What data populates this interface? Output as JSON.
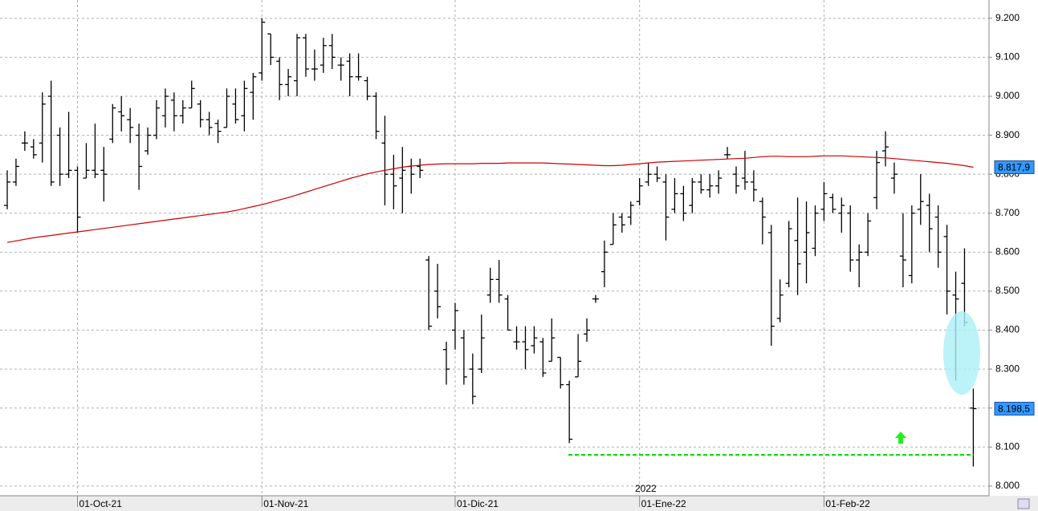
{
  "chart_data": {
    "type": "ohlc",
    "categories": [
      null,
      null,
      null,
      null,
      null,
      null,
      null,
      null,
      "01-Oct-21",
      null,
      null,
      null,
      null,
      null,
      null,
      null,
      null,
      null,
      null,
      null,
      null,
      null,
      null,
      null,
      null,
      null,
      null,
      null,
      null,
      "01-Nov-21",
      null,
      null,
      null,
      null,
      null,
      null,
      null,
      null,
      null,
      null,
      null,
      null,
      null,
      null,
      null,
      null,
      null,
      null,
      null,
      null,
      null,
      "01-Dic-21",
      null,
      null,
      null,
      null,
      null,
      null,
      null,
      null,
      null,
      null,
      null,
      null,
      null,
      null,
      null,
      null,
      null,
      null,
      null,
      null,
      "01-Ene-22",
      null,
      null,
      null,
      null,
      null,
      null,
      null,
      null,
      null,
      null,
      null,
      null,
      null,
      null,
      null,
      null,
      null,
      null,
      null,
      null,
      "01-Feb-22",
      null,
      null,
      null,
      null,
      null,
      null,
      null,
      null,
      null,
      null,
      null,
      null,
      null,
      null,
      null,
      null,
      null
    ],
    "year_label": "2022",
    "series": [
      {
        "color": "#000000",
        "last_label": "8.198,5",
        "open": [
          8.72,
          8.78,
          8.88,
          8.87,
          8.88,
          9.0,
          8.9,
          8.8,
          8.81,
          8.79,
          8.81,
          8.81,
          8.89,
          8.96,
          8.94,
          8.9,
          8.86,
          8.9,
          8.95,
          8.99,
          8.95,
          8.97,
          8.98,
          8.94,
          8.93,
          8.92,
          8.98,
          8.95,
          9.01,
          9.06,
          9.16,
          9.09,
          9.03,
          9.04,
          9.15,
          9.07,
          9.08,
          9.13,
          9.08,
          9.09,
          9.05,
          9.04,
          9.0,
          8.88,
          8.8,
          8.79,
          8.82,
          8.82,
          8.58,
          8.5,
          8.35,
          8.4,
          8.38,
          8.3,
          8.3,
          8.49,
          8.53,
          8.48,
          8.37,
          8.37,
          8.36,
          8.37,
          8.32,
          8.33,
          8.26,
          8.28,
          8.39,
          8.48,
          8.55,
          8.62,
          8.69,
          8.69,
          8.73,
          8.78,
          8.8,
          8.78,
          8.71,
          8.75,
          8.72,
          8.78,
          8.76,
          8.77,
          8.85,
          8.8,
          8.79,
          8.78,
          8.73,
          8.65,
          8.43,
          8.52,
          8.63,
          8.6,
          8.61,
          8.71,
          8.74,
          8.7,
          8.7,
          8.58,
          8.6,
          8.74,
          8.86,
          8.79,
          8.59,
          8.54,
          8.71,
          8.72,
          8.69,
          8.64,
          8.49,
          8.52,
          8.2
        ],
        "high": [
          8.81,
          8.84,
          8.91,
          8.89,
          9.01,
          9.04,
          8.92,
          8.96,
          8.82,
          8.88,
          8.93,
          8.87,
          8.98,
          9.0,
          8.97,
          8.93,
          8.92,
          8.99,
          9.02,
          9.01,
          8.99,
          9.04,
          8.99,
          8.96,
          8.94,
          9.02,
          9.02,
          9.04,
          9.06,
          9.2,
          9.16,
          9.1,
          9.07,
          9.16,
          9.16,
          9.12,
          9.15,
          9.16,
          9.1,
          9.11,
          9.11,
          9.05,
          9.01,
          8.95,
          8.85,
          8.87,
          8.84,
          8.84,
          8.59,
          8.57,
          8.37,
          8.47,
          8.4,
          8.34,
          8.44,
          8.56,
          8.58,
          8.49,
          8.41,
          8.41,
          8.41,
          8.38,
          8.43,
          8.33,
          8.27,
          8.39,
          8.43,
          8.49,
          8.63,
          8.7,
          8.7,
          8.73,
          8.79,
          8.83,
          8.82,
          8.8,
          8.79,
          8.77,
          8.79,
          8.8,
          8.8,
          8.81,
          8.87,
          8.82,
          8.86,
          8.81,
          8.74,
          8.67,
          8.53,
          8.68,
          8.74,
          8.73,
          8.72,
          8.78,
          8.75,
          8.74,
          8.72,
          8.62,
          8.7,
          8.86,
          8.91,
          8.83,
          8.7,
          8.72,
          8.8,
          8.75,
          8.72,
          8.67,
          8.55,
          8.61,
          8.25
        ],
        "low": [
          8.71,
          8.77,
          8.86,
          8.84,
          8.83,
          8.77,
          8.77,
          8.79,
          8.65,
          8.79,
          8.79,
          8.73,
          8.88,
          8.91,
          8.88,
          8.76,
          8.85,
          8.89,
          8.92,
          8.91,
          8.93,
          8.97,
          8.92,
          8.9,
          8.88,
          8.92,
          8.93,
          8.91,
          8.94,
          9.04,
          9.08,
          8.99,
          9.0,
          9.0,
          9.05,
          9.04,
          9.06,
          9.07,
          9.04,
          9.0,
          9.04,
          8.99,
          8.89,
          8.72,
          8.71,
          8.7,
          8.75,
          8.79,
          8.4,
          8.43,
          8.26,
          8.35,
          8.26,
          8.21,
          8.29,
          8.47,
          8.47,
          8.4,
          8.35,
          8.3,
          8.34,
          8.28,
          8.32,
          8.25,
          8.11,
          8.28,
          8.37,
          8.47,
          8.51,
          8.62,
          8.65,
          8.67,
          8.72,
          8.77,
          8.78,
          8.63,
          8.7,
          8.68,
          8.7,
          8.75,
          8.74,
          8.75,
          8.84,
          8.75,
          8.76,
          8.73,
          8.62,
          8.36,
          8.42,
          8.51,
          8.49,
          8.52,
          8.59,
          8.68,
          8.7,
          8.65,
          8.55,
          8.51,
          8.59,
          8.71,
          8.82,
          8.75,
          8.51,
          8.52,
          8.67,
          8.6,
          8.56,
          8.44,
          8.27,
          8.41,
          8.05
        ],
        "close": [
          8.78,
          8.82,
          8.88,
          8.85,
          8.98,
          8.78,
          8.8,
          8.81,
          8.69,
          8.81,
          8.8,
          8.8,
          8.97,
          8.95,
          8.92,
          8.82,
          8.9,
          8.97,
          9.0,
          8.95,
          8.97,
          9.02,
          8.94,
          8.92,
          8.91,
          9.0,
          8.94,
          9.02,
          9.05,
          9.19,
          9.1,
          9.03,
          9.05,
          9.15,
          9.07,
          9.07,
          9.13,
          9.1,
          9.08,
          9.05,
          9.05,
          9.0,
          8.91,
          8.8,
          8.77,
          8.81,
          8.8,
          8.81,
          8.41,
          8.46,
          8.3,
          8.45,
          8.28,
          8.23,
          8.38,
          8.53,
          8.49,
          8.4,
          8.37,
          8.35,
          8.38,
          8.29,
          8.38,
          8.26,
          8.12,
          8.32,
          8.4,
          8.48,
          8.6,
          8.67,
          8.67,
          8.72,
          8.77,
          8.8,
          8.79,
          8.69,
          8.75,
          8.7,
          8.78,
          8.76,
          8.77,
          8.79,
          8.85,
          8.77,
          8.78,
          8.76,
          8.69,
          8.41,
          8.49,
          8.66,
          8.57,
          8.65,
          8.7,
          8.75,
          8.71,
          8.72,
          8.58,
          8.6,
          8.68,
          8.83,
          8.87,
          8.8,
          8.58,
          8.7,
          8.73,
          8.66,
          8.6,
          8.5,
          8.48,
          8.42,
          8.1985
        ]
      },
      {
        "type": "line",
        "color": "#cc0000",
        "last_label": "8.817,9",
        "values": [
          8.625,
          8.629,
          8.633,
          8.637,
          8.64,
          8.643,
          8.646,
          8.649,
          8.652,
          8.655,
          8.658,
          8.661,
          8.664,
          8.667,
          8.67,
          8.673,
          8.676,
          8.679,
          8.682,
          8.685,
          8.688,
          8.691,
          8.694,
          8.697,
          8.7,
          8.703,
          8.707,
          8.712,
          8.717,
          8.722,
          8.728,
          8.734,
          8.74,
          8.747,
          8.754,
          8.761,
          8.768,
          8.775,
          8.782,
          8.789,
          8.795,
          8.801,
          8.806,
          8.81,
          8.814,
          8.818,
          8.821,
          8.823,
          8.825,
          8.826,
          8.827,
          8.827,
          8.827,
          8.827,
          8.828,
          8.828,
          8.828,
          8.829,
          8.829,
          8.829,
          8.829,
          8.829,
          8.828,
          8.827,
          8.826,
          8.825,
          8.824,
          8.823,
          8.822,
          8.822,
          8.823,
          8.825,
          8.827,
          8.829,
          8.831,
          8.832,
          8.833,
          8.834,
          8.835,
          8.836,
          8.837,
          8.838,
          8.839,
          8.84,
          8.841,
          8.843,
          8.845,
          8.846,
          8.846,
          8.845,
          8.845,
          8.845,
          8.846,
          8.847,
          8.847,
          8.847,
          8.846,
          8.845,
          8.844,
          8.843,
          8.842,
          8.84,
          8.838,
          8.836,
          8.834,
          8.832,
          8.83,
          8.828,
          8.825,
          8.822,
          8.8179
        ]
      }
    ],
    "support_level": 8.08,
    "support_color": "#00dd00",
    "ylim": [
      7.975,
      9.247
    ],
    "yticks": [
      {
        "value": 8.0,
        "label": "8.000"
      },
      {
        "value": 8.1,
        "label": "8.100"
      },
      {
        "value": 8.2,
        "label": "8.200"
      },
      {
        "value": 8.3,
        "label": "8.300"
      },
      {
        "value": 8.4,
        "label": "8.400"
      },
      {
        "value": 8.5,
        "label": "8.500"
      },
      {
        "value": 8.6,
        "label": "8.600"
      },
      {
        "value": 8.7,
        "label": "8.700"
      },
      {
        "value": 8.8,
        "label": "8.800"
      },
      {
        "value": 8.9,
        "label": "8.900"
      },
      {
        "value": 9.0,
        "label": "9.000"
      },
      {
        "value": 9.1,
        "label": "9.100"
      },
      {
        "value": 9.2,
        "label": "9.200"
      }
    ],
    "grid": true
  }
}
